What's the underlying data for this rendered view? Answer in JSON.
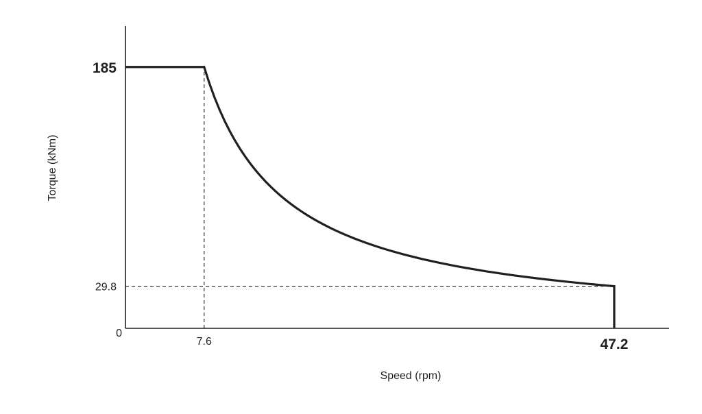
{
  "chart_data": {
    "type": "line",
    "title": "",
    "xlabel": "Speed (rpm)",
    "ylabel": "Torque (kNm)",
    "xlim": [
      0,
      52.5
    ],
    "ylim": [
      0,
      214
    ],
    "grid": false,
    "legend": "none",
    "line_color": "#231f20",
    "origin_label": "0",
    "x_ticks": [
      {
        "value": 7.6,
        "label": "7.6",
        "bold": false
      },
      {
        "value": 47.2,
        "label": "47.2",
        "bold": true
      }
    ],
    "y_ticks": [
      {
        "value": 185,
        "label": "185",
        "bold": true
      },
      {
        "value": 29.8,
        "label": "29.8",
        "bold": false
      }
    ],
    "reference_lines": [
      {
        "axis": "x",
        "value": 7.6,
        "from": 0,
        "to": 185,
        "style": "dashed"
      },
      {
        "axis": "y",
        "value": 29.8,
        "from": 0,
        "to": 47.2,
        "style": "dashed"
      }
    ],
    "series": [
      {
        "segments": [
          {
            "kind": "constant",
            "x": [
              0,
              7.6
            ],
            "y": 185
          },
          {
            "kind": "constant-power",
            "x": [
              7.6,
              47.2
            ],
            "y_start": 185,
            "y_end": 29.8
          },
          {
            "kind": "vertical-drop",
            "x": 47.2,
            "y": [
              29.8,
              0
            ]
          }
        ]
      }
    ]
  }
}
